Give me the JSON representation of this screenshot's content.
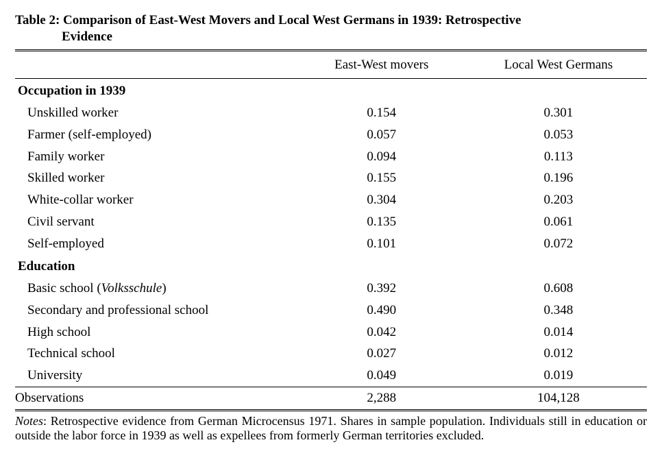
{
  "table": {
    "title_line1": "Table 2: Comparison of East-West Movers and Local West Germans in 1939: Retrospective",
    "title_line2": "Evidence",
    "columns": [
      "East-West movers",
      "Local West Germans"
    ],
    "sections": [
      {
        "heading": "Occupation in 1939",
        "rows": [
          {
            "label": "Unskilled worker",
            "v1": "0.154",
            "v2": "0.301"
          },
          {
            "label": "Farmer (self-employed)",
            "v1": "0.057",
            "v2": "0.053"
          },
          {
            "label": "Family worker",
            "v1": "0.094",
            "v2": "0.113"
          },
          {
            "label": "Skilled worker",
            "v1": "0.155",
            "v2": "0.196"
          },
          {
            "label": "White-collar worker",
            "v1": "0.304",
            "v2": "0.203"
          },
          {
            "label": "Civil servant",
            "v1": "0.135",
            "v2": "0.061"
          },
          {
            "label": "Self-employed",
            "v1": "0.101",
            "v2": "0.072"
          }
        ]
      },
      {
        "heading": "Education",
        "rows": [
          {
            "label_html": "Basic school (<em>Volksschule</em>)",
            "v1": "0.392",
            "v2": "0.608"
          },
          {
            "label": "Secondary and professional school",
            "v1": "0.490",
            "v2": "0.348"
          },
          {
            "label": "High school",
            "v1": "0.042",
            "v2": "0.014"
          },
          {
            "label": "Technical school",
            "v1": "0.027",
            "v2": "0.012"
          },
          {
            "label": "University",
            "v1": "0.049",
            "v2": "0.019"
          }
        ]
      }
    ],
    "observations": {
      "label": "Observations",
      "v1": "2,288",
      "v2": "104,128"
    },
    "notes_html": "<em>Notes</em>: Retrospective evidence from German Microcensus 1971. Shares in sample population. Individuals still in education or outside the labor force in 1939 as well as expellees from formerly German territories excluded.",
    "colors": {
      "text": "#000000",
      "background": "#ffffff",
      "rule": "#000000"
    },
    "fonts": {
      "family": "Times New Roman",
      "body_pt": 14,
      "notes_pt": 13,
      "title_weight": "bold"
    }
  }
}
